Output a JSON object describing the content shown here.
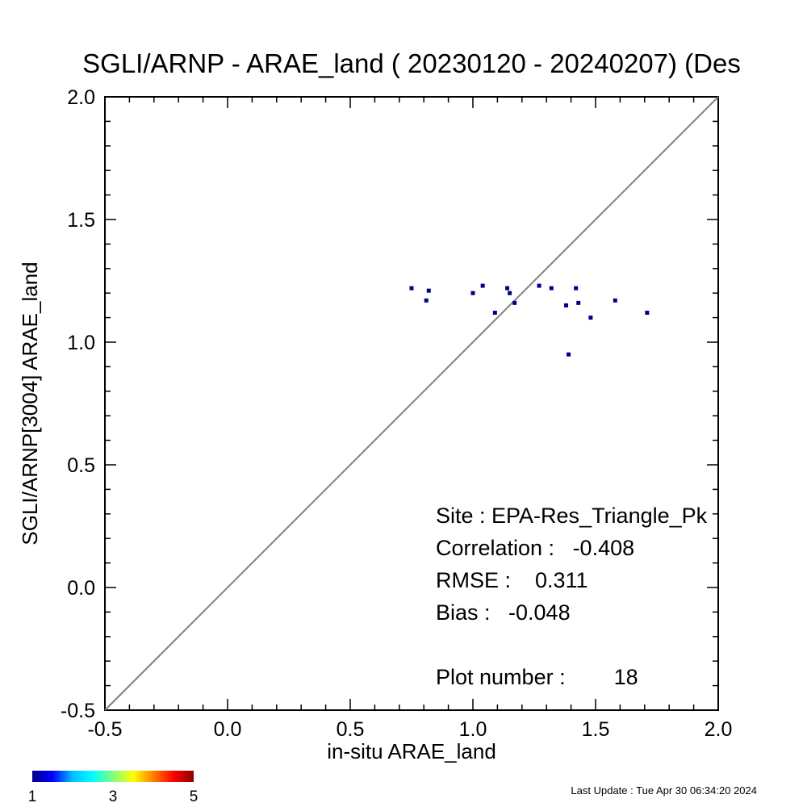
{
  "chart_data": {
    "type": "scatter",
    "title": "SGLI/ARNP - ARAE_land ( 20230120 - 20240207) (Des",
    "xlabel": "in-situ ARAE_land",
    "ylabel": "SGLI/ARNP[3004]    ARAE_land",
    "xlim": [
      -0.5,
      2.0
    ],
    "ylim": [
      -0.5,
      2.0
    ],
    "x_ticks": [
      "-0.5",
      "0.0",
      "0.5",
      "1.0",
      "1.5",
      "2.0"
    ],
    "y_ticks": [
      "-0.5",
      "0.0",
      "0.5",
      "1.0",
      "1.5",
      "2.0"
    ],
    "x_tick_values": [
      -0.5,
      0.0,
      0.5,
      1.0,
      1.5,
      2.0
    ],
    "y_tick_values": [
      -0.5,
      0.0,
      0.5,
      1.0,
      1.5,
      2.0
    ],
    "grid": false,
    "reference_line": "1:1",
    "point_color": "#00008b",
    "line_color": "#808080",
    "points": [
      {
        "x": 0.75,
        "y": 1.22
      },
      {
        "x": 0.81,
        "y": 1.17
      },
      {
        "x": 0.82,
        "y": 1.21
      },
      {
        "x": 1.0,
        "y": 1.2
      },
      {
        "x": 1.04,
        "y": 1.23
      },
      {
        "x": 1.09,
        "y": 1.12
      },
      {
        "x": 1.14,
        "y": 1.22
      },
      {
        "x": 1.15,
        "y": 1.2
      },
      {
        "x": 1.17,
        "y": 1.16
      },
      {
        "x": 1.27,
        "y": 1.23
      },
      {
        "x": 1.32,
        "y": 1.22
      },
      {
        "x": 1.38,
        "y": 1.15
      },
      {
        "x": 1.39,
        "y": 0.95
      },
      {
        "x": 1.42,
        "y": 1.22
      },
      {
        "x": 1.43,
        "y": 1.16
      },
      {
        "x": 1.48,
        "y": 1.1
      },
      {
        "x": 1.58,
        "y": 1.17
      },
      {
        "x": 1.71,
        "y": 1.12
      }
    ],
    "stats": {
      "site": "Site : EPA-Res_Triangle_Pk",
      "correlation": "Correlation :   -0.408",
      "rmse": "RMSE :    0.311",
      "bias": "Bias :   -0.048",
      "plot_number": "Plot number :        18"
    },
    "colorbar": {
      "labels": [
        "1",
        "3",
        "5"
      ],
      "values": [
        1,
        3,
        5
      ],
      "colors": [
        "#00008b",
        "#0000ff",
        "#00bfff",
        "#00ffff",
        "#7fff7f",
        "#ffff00",
        "#ff7f00",
        "#ff0000",
        "#8b0000"
      ]
    },
    "footer": "Last Update : Tue Apr 30 06:34:20 2024"
  }
}
